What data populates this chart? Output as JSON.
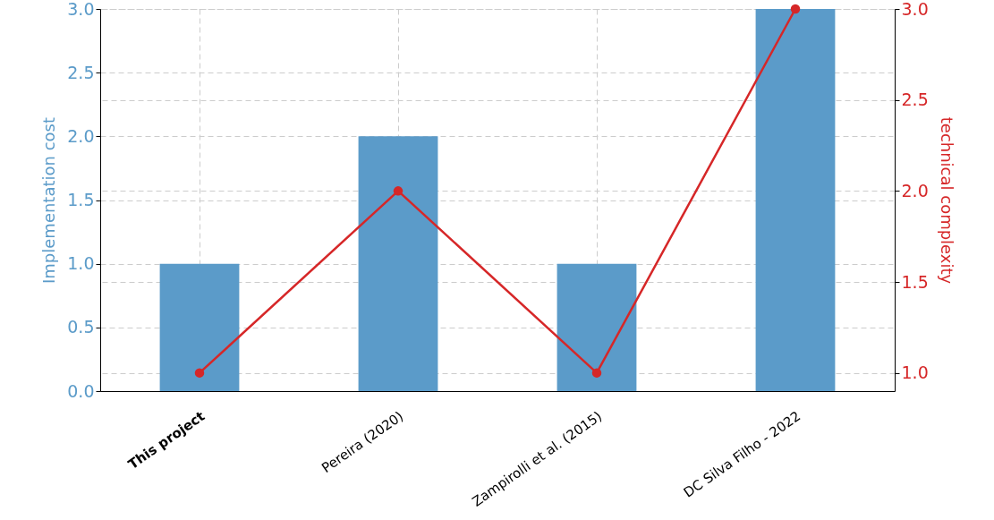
{
  "chart_data": {
    "type": "bar",
    "categories": [
      "This project",
      "Pereira (2020)",
      "Zampirolli et al. (2015)",
      "DC Silva Filho - 2022"
    ],
    "series": [
      {
        "color": "#5b9bc9",
        "values": [
          1,
          2,
          1,
          3
        ]
      },
      {
        "type": "line",
        "axis": "y2",
        "color": "#d62728",
        "values": [
          1,
          2,
          1,
          3
        ]
      }
    ],
    "ylabel": "Implementation cost",
    "y2label": "technical complexity",
    "ylim": [
      0,
      3
    ],
    "yticks": [
      {
        "value": 0,
        "label": "0.0"
      },
      {
        "value": 0.5,
        "label": "0.5"
      },
      {
        "value": 1,
        "label": "1.0"
      },
      {
        "value": 1.5,
        "label": "1.5"
      },
      {
        "value": 2,
        "label": "2.0"
      },
      {
        "value": 2.5,
        "label": "2.5"
      },
      {
        "value": 3,
        "label": "3.0"
      }
    ],
    "y2lim": [
      0.9,
      3
    ],
    "y2ticks": [
      {
        "value": 1,
        "label": "1.0"
      },
      {
        "value": 1.5,
        "label": "1.5"
      },
      {
        "value": 2,
        "label": "2.0"
      },
      {
        "value": 2.5,
        "label": "2.5"
      },
      {
        "value": 3,
        "label": "3.0"
      }
    ],
    "grid": true,
    "marker": "circle",
    "line_style": "solid"
  }
}
